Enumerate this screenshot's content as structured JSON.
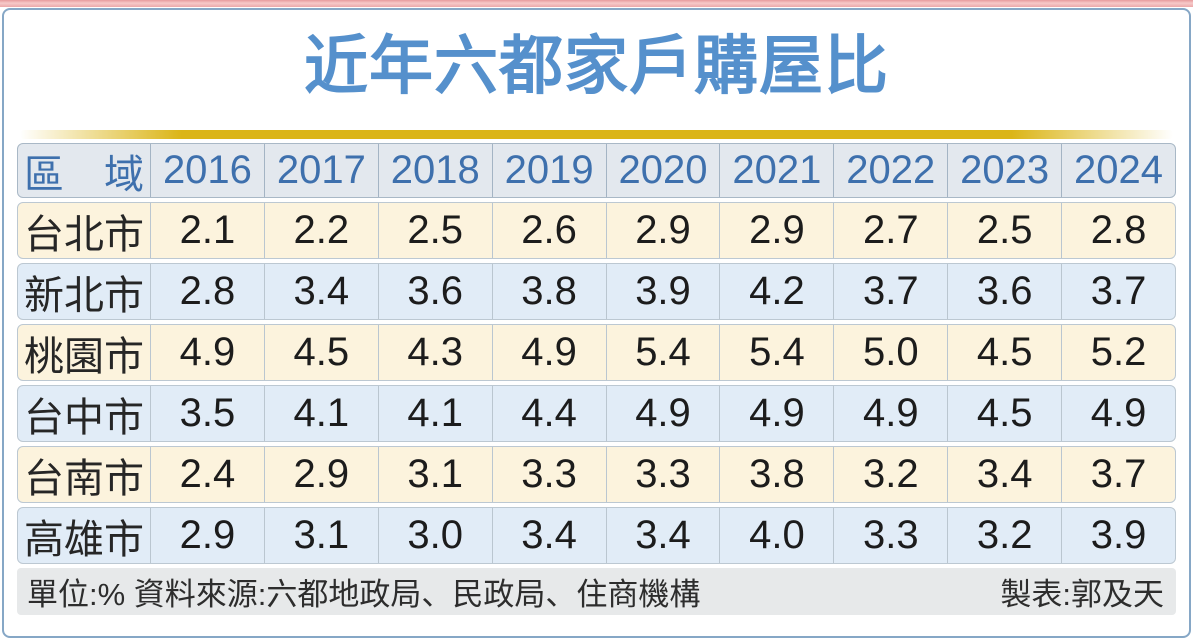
{
  "title": "近年六都家戶購屋比",
  "table": {
    "region_header": "區　域",
    "years": [
      "2016",
      "2017",
      "2018",
      "2019",
      "2020",
      "2021",
      "2022",
      "2023",
      "2024"
    ],
    "rows": [
      {
        "region": "台北市",
        "values": [
          "2.1",
          "2.2",
          "2.5",
          "2.6",
          "2.9",
          "2.9",
          "2.7",
          "2.5",
          "2.8"
        ]
      },
      {
        "region": "新北市",
        "values": [
          "2.8",
          "3.4",
          "3.6",
          "3.8",
          "3.9",
          "4.2",
          "3.7",
          "3.6",
          "3.7"
        ]
      },
      {
        "region": "桃園市",
        "values": [
          "4.9",
          "4.5",
          "4.3",
          "4.9",
          "5.4",
          "5.4",
          "5.0",
          "4.5",
          "5.2"
        ]
      },
      {
        "region": "台中市",
        "values": [
          "3.5",
          "4.1",
          "4.1",
          "4.4",
          "4.9",
          "4.9",
          "4.9",
          "4.5",
          "4.9"
        ]
      },
      {
        "region": "台南市",
        "values": [
          "2.4",
          "2.9",
          "3.1",
          "3.3",
          "3.3",
          "3.8",
          "3.2",
          "3.4",
          "3.7"
        ]
      },
      {
        "region": "高雄市",
        "values": [
          "2.9",
          "3.1",
          "3.0",
          "3.4",
          "3.4",
          "4.0",
          "3.3",
          "3.2",
          "3.9"
        ]
      }
    ]
  },
  "footer": {
    "left": "單位:% 資料來源:六都地政局、民政局、住商機構",
    "right": "製表:郭及天"
  },
  "colors": {
    "title_blue": "#5590cc",
    "header_text_blue": "#3e70ad",
    "header_bg": "#e3e8ee",
    "row_cream": "#fcf3dd",
    "row_light_blue": "#e1ecf7",
    "gold_bar": "#dbb517",
    "top_strip_pink": "#eba8a9",
    "panel_border_blue": "#86a7c6",
    "footer_bg": "#e7e9ea"
  },
  "chart_data": {
    "type": "table",
    "title": "近年六都家戶購屋比",
    "unit": "%",
    "categories": [
      "2016",
      "2017",
      "2018",
      "2019",
      "2020",
      "2021",
      "2022",
      "2023",
      "2024"
    ],
    "series": [
      {
        "name": "台北市",
        "values": [
          2.1,
          2.2,
          2.5,
          2.6,
          2.9,
          2.9,
          2.7,
          2.5,
          2.8
        ]
      },
      {
        "name": "新北市",
        "values": [
          2.8,
          3.4,
          3.6,
          3.8,
          3.9,
          4.2,
          3.7,
          3.6,
          3.7
        ]
      },
      {
        "name": "桃園市",
        "values": [
          4.9,
          4.5,
          4.3,
          4.9,
          5.4,
          5.4,
          5.0,
          4.5,
          5.2
        ]
      },
      {
        "name": "台中市",
        "values": [
          3.5,
          4.1,
          4.1,
          4.4,
          4.9,
          4.9,
          4.9,
          4.5,
          4.9
        ]
      },
      {
        "name": "台南市",
        "values": [
          2.4,
          2.9,
          3.1,
          3.3,
          3.3,
          3.8,
          3.2,
          3.4,
          3.7
        ]
      },
      {
        "name": "高雄市",
        "values": [
          2.9,
          3.1,
          3.0,
          3.4,
          3.4,
          4.0,
          3.3,
          3.2,
          3.9
        ]
      }
    ],
    "source": "六都地政局、民政局、住商機構",
    "credit": "郭及天"
  }
}
